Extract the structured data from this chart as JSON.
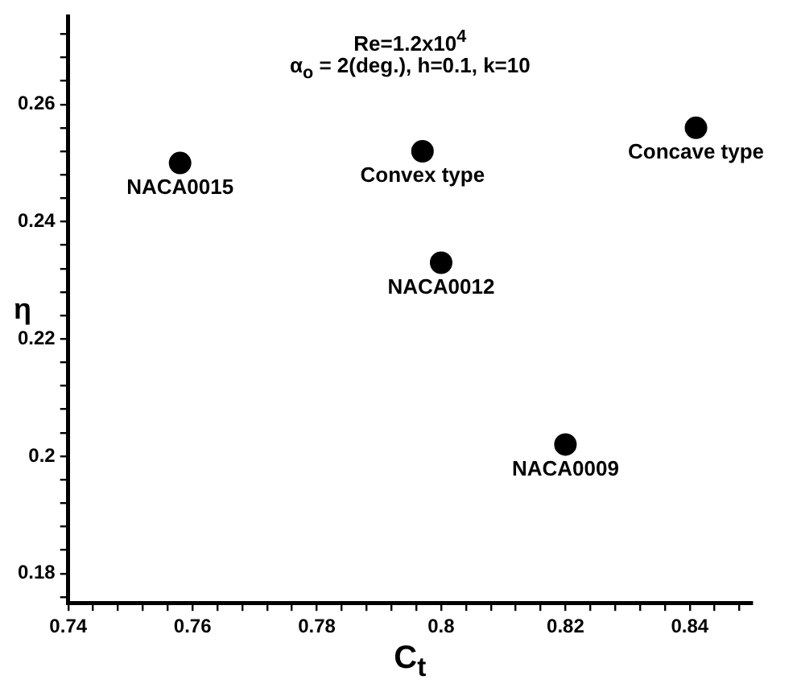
{
  "chart_data": {
    "type": "scatter",
    "title": "Re=1.2x10$^{4}$",
    "subtitle": "α$_{o}$ = 2(deg.), h=0.1, k=10",
    "xlabel": "C$_{t}$",
    "ylabel": "η",
    "series": [
      {
        "color": "#000000",
        "x": [
          0.758,
          0.797,
          0.841,
          0.8,
          0.82
        ],
        "values": [
          0.25,
          0.252,
          0.256,
          0.233,
          0.202
        ]
      }
    ],
    "annotations": [
      {
        "text": "NACA0015",
        "x": 0.758,
        "y": 0.25
      },
      {
        "text": "Convex type",
        "x": 0.797,
        "y": 0.252
      },
      {
        "text": "Concave type",
        "x": 0.841,
        "y": 0.256
      },
      {
        "text": "NACA0012",
        "x": 0.8,
        "y": 0.233
      },
      {
        "text": "NACA0009",
        "x": 0.82,
        "y": 0.202
      }
    ],
    "xlim": [
      0.74,
      0.85
    ],
    "xticks": [
      0.74,
      {
        "value": 0.744,
        "label": null
      },
      {
        "value": 0.748,
        "label": null
      },
      {
        "value": 0.752,
        "label": null
      },
      {
        "value": 0.756,
        "label": null
      },
      0.76,
      {
        "value": 0.764,
        "label": null
      },
      {
        "value": 0.768,
        "label": null
      },
      {
        "value": 0.772,
        "label": null
      },
      {
        "value": 0.776,
        "label": null
      },
      0.78,
      {
        "value": 0.784,
        "label": null
      },
      {
        "value": 0.788,
        "label": null
      },
      {
        "value": 0.792,
        "label": null
      },
      {
        "value": 0.796,
        "label": null
      },
      {
        "value": 0.8,
        "label": "0.8"
      },
      {
        "value": 0.804,
        "label": null
      },
      {
        "value": 0.808,
        "label": null
      },
      {
        "value": 0.812,
        "label": null
      },
      {
        "value": 0.816,
        "label": null
      },
      0.82,
      {
        "value": 0.824,
        "label": null
      },
      {
        "value": 0.828,
        "label": null
      },
      {
        "value": 0.832,
        "label": null
      },
      {
        "value": 0.836,
        "label": null
      },
      0.84,
      {
        "value": 0.844,
        "label": null
      },
      {
        "value": 0.848,
        "label": null
      }
    ],
    "ylim": [
      0.175,
      0.275
    ],
    "yticks": [
      {
        "value": 0.176,
        "label": null
      },
      0.18,
      {
        "value": 0.184,
        "label": null
      },
      {
        "value": 0.188,
        "label": null
      },
      {
        "value": 0.192,
        "label": null
      },
      {
        "value": 0.196,
        "label": null
      },
      {
        "value": 0.2,
        "label": "0.2"
      },
      {
        "value": 0.204,
        "label": null
      },
      {
        "value": 0.208,
        "label": null
      },
      {
        "value": 0.212,
        "label": null
      },
      {
        "value": 0.216,
        "label": null
      },
      0.22,
      {
        "value": 0.224,
        "label": null
      },
      {
        "value": 0.228,
        "label": null
      },
      {
        "value": 0.232,
        "label": null
      },
      {
        "value": 0.236,
        "label": null
      },
      0.24,
      {
        "value": 0.244,
        "label": null
      },
      {
        "value": 0.248,
        "label": null
      },
      {
        "value": 0.252,
        "label": null
      },
      {
        "value": 0.256,
        "label": null
      },
      0.26,
      {
        "value": 0.264,
        "label": null
      },
      {
        "value": 0.268,
        "label": null
      },
      {
        "value": 0.272,
        "label": null
      }
    ],
    "grid": false,
    "legend": false,
    "marker": "circle"
  }
}
